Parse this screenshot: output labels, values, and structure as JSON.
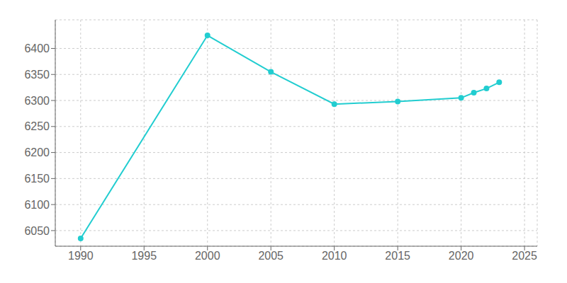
{
  "chart_data": {
    "type": "line",
    "x": [
      1990,
      2000,
      2005,
      2010,
      2015,
      2020,
      2021,
      2022,
      2023
    ],
    "values": [
      6035,
      6425,
      6355,
      6293,
      6298,
      6305,
      6315,
      6323,
      6335
    ],
    "color": "#22CDD0",
    "marker": "circle",
    "xlim": [
      1988,
      2026
    ],
    "ylim": [
      6020,
      6455
    ],
    "xticks": [
      1990,
      1995,
      2000,
      2005,
      2010,
      2015,
      2020,
      2025
    ],
    "yticks": [
      6050,
      6100,
      6150,
      6200,
      6250,
      6300,
      6350,
      6400
    ],
    "grid": true
  }
}
